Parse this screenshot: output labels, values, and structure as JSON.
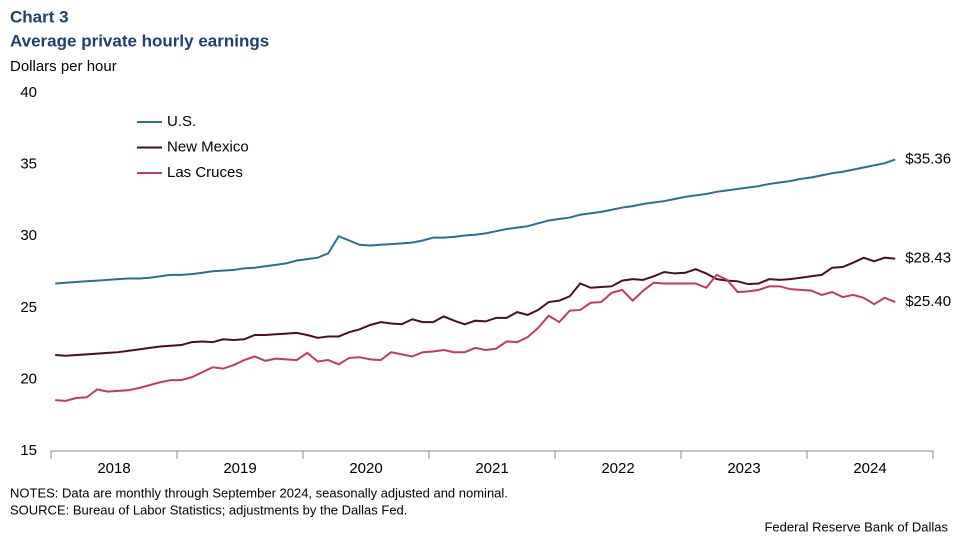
{
  "chart_data": {
    "type": "line",
    "title": "Chart 3",
    "subtitle": "Average private hourly earnings",
    "y_label": "Dollars per hour",
    "notes": "NOTES: Data are monthly through September 2024, seasonally adjusted and nominal.",
    "source": "SOURCE: Bureau of Labor Statistics; adjustments by the Dallas Fed.",
    "credit": "Federal Reserve Bank of Dallas",
    "categories": [
      "2018",
      null,
      null,
      null,
      null,
      null,
      null,
      null,
      null,
      null,
      null,
      null,
      "2019",
      null,
      null,
      null,
      null,
      null,
      null,
      null,
      null,
      null,
      null,
      null,
      "2020",
      null,
      null,
      null,
      null,
      null,
      null,
      null,
      null,
      null,
      null,
      null,
      "2021",
      null,
      null,
      null,
      null,
      null,
      null,
      null,
      null,
      null,
      null,
      null,
      "2022",
      null,
      null,
      null,
      null,
      null,
      null,
      null,
      null,
      null,
      null,
      null,
      "2023",
      null,
      null,
      null,
      null,
      null,
      null,
      null,
      null,
      null,
      null,
      null,
      "2024",
      null,
      null,
      null,
      null,
      null,
      null,
      null,
      null
    ],
    "ylim": [
      15,
      40
    ],
    "yticks": [
      15,
      20,
      25,
      30,
      35,
      40
    ],
    "grid": false,
    "legend": "top-left",
    "series": [
      {
        "name": "U.S.",
        "color": "#2b6f8e",
        "values": [
          26.7,
          26.75,
          26.8,
          26.85,
          26.9,
          26.95,
          27.0,
          27.05,
          27.05,
          27.1,
          27.2,
          27.3,
          27.3,
          27.35,
          27.45,
          27.55,
          27.6,
          27.65,
          27.75,
          27.8,
          27.9,
          28.0,
          28.1,
          28.3,
          28.4,
          28.5,
          28.8,
          30.0,
          29.7,
          29.4,
          29.35,
          29.4,
          29.45,
          29.5,
          29.55,
          29.7,
          29.9,
          29.9,
          29.95,
          30.05,
          30.1,
          30.2,
          30.35,
          30.5,
          30.6,
          30.7,
          30.9,
          31.1,
          31.2,
          31.3,
          31.5,
          31.6,
          31.7,
          31.85,
          32.0,
          32.1,
          32.25,
          32.35,
          32.45,
          32.6,
          32.75,
          32.85,
          32.95,
          33.1,
          33.2,
          33.3,
          33.4,
          33.5,
          33.65,
          33.75,
          33.85,
          34.0,
          34.1,
          34.25,
          34.4,
          34.5,
          34.65,
          34.8,
          34.95,
          35.1,
          35.36
        ],
        "value_labels": [
          null,
          null,
          null,
          null,
          null,
          null,
          null,
          null,
          null,
          null,
          null,
          null,
          null,
          null,
          null,
          null,
          null,
          null,
          null,
          null,
          null,
          null,
          null,
          null,
          null,
          null,
          null,
          null,
          null,
          null,
          null,
          null,
          null,
          null,
          null,
          null,
          null,
          null,
          null,
          null,
          null,
          null,
          null,
          null,
          null,
          null,
          null,
          null,
          null,
          null,
          null,
          null,
          null,
          null,
          null,
          null,
          null,
          null,
          null,
          null,
          null,
          null,
          null,
          null,
          null,
          null,
          null,
          null,
          null,
          null,
          null,
          null,
          null,
          null,
          null,
          null,
          null,
          null,
          null,
          null,
          "$35.36"
        ]
      },
      {
        "name": "New Mexico",
        "color": "#4b0d22",
        "values": [
          21.7,
          21.65,
          21.7,
          21.75,
          21.8,
          21.85,
          21.9,
          22.0,
          22.1,
          22.2,
          22.3,
          22.35,
          22.4,
          22.6,
          22.65,
          22.6,
          22.8,
          22.75,
          22.8,
          23.1,
          23.1,
          23.15,
          23.2,
          23.25,
          23.1,
          22.9,
          23.0,
          23.0,
          23.3,
          23.5,
          23.8,
          24.0,
          23.9,
          23.85,
          24.2,
          24.0,
          24.0,
          24.4,
          24.1,
          23.85,
          24.1,
          24.05,
          24.3,
          24.3,
          24.7,
          24.5,
          24.85,
          25.4,
          25.5,
          25.8,
          26.7,
          26.4,
          26.45,
          26.5,
          26.9,
          27.0,
          26.95,
          27.2,
          27.5,
          27.4,
          27.45,
          27.7,
          27.4,
          27.0,
          26.9,
          26.85,
          26.65,
          26.7,
          27.0,
          26.95,
          27.0,
          27.1,
          27.2,
          27.3,
          27.8,
          27.85,
          28.15,
          28.5,
          28.25,
          28.5,
          28.43
        ],
        "value_labels": [
          null,
          null,
          null,
          null,
          null,
          null,
          null,
          null,
          null,
          null,
          null,
          null,
          null,
          null,
          null,
          null,
          null,
          null,
          null,
          null,
          null,
          null,
          null,
          null,
          null,
          null,
          null,
          null,
          null,
          null,
          null,
          null,
          null,
          null,
          null,
          null,
          null,
          null,
          null,
          null,
          null,
          null,
          null,
          null,
          null,
          null,
          null,
          null,
          null,
          null,
          null,
          null,
          null,
          null,
          null,
          null,
          null,
          null,
          null,
          null,
          null,
          null,
          null,
          null,
          null,
          null,
          null,
          null,
          null,
          null,
          null,
          null,
          null,
          null,
          null,
          null,
          null,
          null,
          null,
          null,
          "$28.43"
        ]
      },
      {
        "name": "Las Cruces",
        "color": "#c23a5c",
        "values": [
          18.55,
          18.5,
          18.7,
          18.75,
          19.3,
          19.15,
          19.2,
          19.25,
          19.4,
          19.6,
          19.8,
          19.95,
          19.95,
          20.15,
          20.5,
          20.85,
          20.75,
          21.0,
          21.35,
          21.6,
          21.3,
          21.45,
          21.4,
          21.35,
          21.85,
          21.25,
          21.35,
          21.05,
          21.5,
          21.55,
          21.4,
          21.35,
          21.9,
          21.75,
          21.6,
          21.9,
          21.95,
          22.05,
          21.9,
          21.9,
          22.2,
          22.05,
          22.15,
          22.65,
          22.6,
          22.95,
          23.6,
          24.45,
          24.0,
          24.8,
          24.85,
          25.35,
          25.4,
          26.05,
          26.25,
          25.5,
          26.2,
          26.75,
          26.7,
          26.7,
          26.7,
          26.7,
          26.4,
          27.3,
          26.95,
          26.1,
          26.15,
          26.25,
          26.5,
          26.5,
          26.3,
          26.25,
          26.2,
          25.9,
          26.1,
          25.75,
          25.9,
          25.7,
          25.25,
          25.7,
          25.4
        ],
        "value_labels": [
          null,
          null,
          null,
          null,
          null,
          null,
          null,
          null,
          null,
          null,
          null,
          null,
          null,
          null,
          null,
          null,
          null,
          null,
          null,
          null,
          null,
          null,
          null,
          null,
          null,
          null,
          null,
          null,
          null,
          null,
          null,
          null,
          null,
          null,
          null,
          null,
          null,
          null,
          null,
          null,
          null,
          null,
          null,
          null,
          null,
          null,
          null,
          null,
          null,
          null,
          null,
          null,
          null,
          null,
          null,
          null,
          null,
          null,
          null,
          null,
          null,
          null,
          null,
          null,
          null,
          null,
          null,
          null,
          null,
          null,
          null,
          null,
          null,
          null,
          null,
          null,
          null,
          null,
          null,
          null,
          "$25.40"
        ]
      }
    ]
  }
}
